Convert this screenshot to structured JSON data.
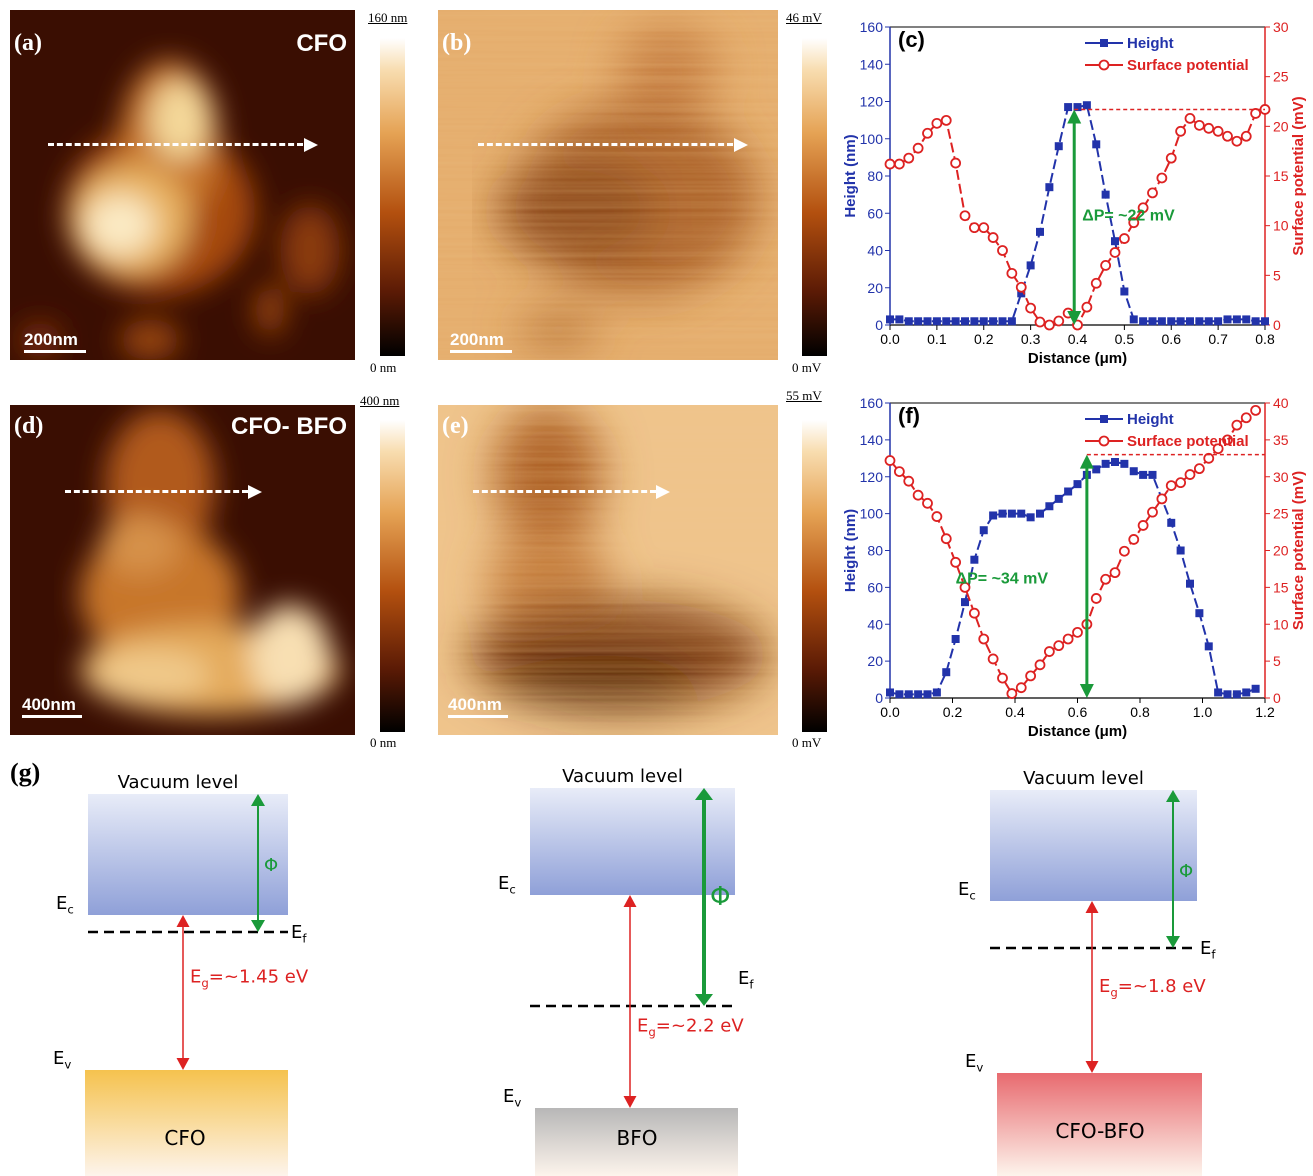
{
  "panels": {
    "a": {
      "label": "(a)",
      "tag": "CFO",
      "scale": "200nm",
      "cb_top": "160 nm",
      "cb_bottom": "0 nm"
    },
    "b": {
      "label": "(b)",
      "scale": "200nm",
      "cb_top": "46 mV",
      "cb_bottom": "0 mV"
    },
    "d": {
      "label": "(d)",
      "tag": "CFO- BFO",
      "scale": "400nm",
      "cb_top": "400 nm",
      "cb_bottom": "0 nm"
    },
    "e": {
      "label": "(e)",
      "scale": "400nm",
      "cb_top": "55 mV",
      "cb_bottom": "0 mV"
    }
  },
  "chart_data": [
    {
      "panel": "(c)",
      "type": "line",
      "xlabel": "Distance (μm)",
      "ylabel": "Height (nm)",
      "y2label": "Surface potential (mV)",
      "xlim": [
        0,
        0.8
      ],
      "ylim": [
        0,
        160
      ],
      "y2lim": [
        0,
        30
      ],
      "xticks": [
        "0.0",
        "0.1",
        "0.2",
        "0.3",
        "0.4",
        "0.5",
        "0.6",
        "0.7",
        "0.8"
      ],
      "yticks": [
        "0",
        "20",
        "40",
        "60",
        "80",
        "100",
        "120",
        "140",
        "160"
      ],
      "y2ticks": [
        "0",
        "5",
        "10",
        "15",
        "20",
        "25",
        "30"
      ],
      "annotation": "ΔP= ~22 mV",
      "series": [
        {
          "name": "Height",
          "axis": "left",
          "color": "#2233aa",
          "x": [
            0,
            0.02,
            0.04,
            0.06,
            0.08,
            0.1,
            0.12,
            0.14,
            0.16,
            0.18,
            0.2,
            0.22,
            0.24,
            0.26,
            0.28,
            0.3,
            0.32,
            0.34,
            0.36,
            0.38,
            0.4,
            0.42,
            0.44,
            0.46,
            0.48,
            0.5,
            0.52,
            0.54,
            0.56,
            0.58,
            0.6,
            0.62,
            0.64,
            0.66,
            0.68,
            0.7,
            0.72,
            0.74,
            0.76,
            0.78,
            0.8
          ],
          "y": [
            3,
            3,
            2,
            2,
            2,
            2,
            2,
            2,
            2,
            2,
            2,
            2,
            2,
            2,
            17,
            32,
            50,
            74,
            96,
            117,
            117,
            118,
            97,
            70,
            45,
            18,
            3,
            2,
            2,
            2,
            2,
            2,
            2,
            2,
            2,
            2,
            3,
            3,
            3,
            2,
            2
          ]
        },
        {
          "name": "Surface potential",
          "axis": "right",
          "color": "#dd2222",
          "x": [
            0,
            0.02,
            0.04,
            0.06,
            0.08,
            0.1,
            0.12,
            0.14,
            0.16,
            0.18,
            0.2,
            0.22,
            0.24,
            0.26,
            0.28,
            0.3,
            0.32,
            0.34,
            0.36,
            0.38,
            0.4,
            0.42,
            0.44,
            0.46,
            0.48,
            0.5,
            0.52,
            0.54,
            0.56,
            0.58,
            0.6,
            0.62,
            0.64,
            0.66,
            0.68,
            0.7,
            0.72,
            0.74,
            0.76,
            0.78,
            0.8
          ],
          "y": [
            16.2,
            16.2,
            16.8,
            17.8,
            19.3,
            20.3,
            20.6,
            16.3,
            11,
            9.8,
            9.8,
            8.8,
            7.5,
            5.2,
            3.8,
            1.7,
            0.3,
            0,
            0.4,
            1.2,
            0,
            1.8,
            4.2,
            6,
            7.3,
            8.7,
            10.3,
            11.8,
            13.3,
            14.8,
            16.8,
            19.5,
            20.8,
            20.1,
            19.8,
            19.5,
            19,
            18.5,
            19,
            21.3,
            21.7
          ]
        }
      ]
    },
    {
      "panel": "(f)",
      "type": "line",
      "xlabel": "Distance (μm)",
      "ylabel": "Height (nm)",
      "y2label": "Surface potential (mV)",
      "xlim": [
        0,
        1.2
      ],
      "ylim": [
        0,
        160
      ],
      "y2lim": [
        0,
        40
      ],
      "xticks": [
        "0.0",
        "0.2",
        "0.4",
        "0.6",
        "0.8",
        "1.0",
        "1.2"
      ],
      "yticks": [
        "0",
        "20",
        "40",
        "60",
        "80",
        "100",
        "120",
        "140",
        "160"
      ],
      "y2ticks": [
        "0",
        "5",
        "10",
        "15",
        "20",
        "25",
        "30",
        "35",
        "40"
      ],
      "annotation": "ΔP= ~34 mV",
      "series": [
        {
          "name": "Height",
          "axis": "left",
          "color": "#2233aa",
          "x": [
            0,
            0.03,
            0.06,
            0.09,
            0.12,
            0.15,
            0.18,
            0.21,
            0.24,
            0.27,
            0.3,
            0.33,
            0.36,
            0.39,
            0.42,
            0.45,
            0.48,
            0.51,
            0.54,
            0.57,
            0.6,
            0.63,
            0.66,
            0.69,
            0.72,
            0.75,
            0.78,
            0.81,
            0.84,
            0.87,
            0.9,
            0.93,
            0.96,
            0.99,
            1.02,
            1.05,
            1.08,
            1.11,
            1.14,
            1.17
          ],
          "y": [
            3,
            2,
            2,
            2,
            2,
            3,
            14,
            32,
            52,
            75,
            91,
            99,
            100,
            100,
            100,
            98,
            100,
            104,
            108,
            112,
            116,
            121,
            124,
            127,
            128,
            127,
            123,
            121,
            121,
            108,
            95,
            80,
            62,
            46,
            28,
            3,
            2,
            2,
            3,
            5
          ]
        },
        {
          "name": "Surface potential",
          "axis": "right",
          "color": "#dd2222",
          "x": [
            0,
            0.03,
            0.06,
            0.09,
            0.12,
            0.15,
            0.18,
            0.21,
            0.24,
            0.27,
            0.3,
            0.33,
            0.36,
            0.39,
            0.42,
            0.45,
            0.48,
            0.51,
            0.54,
            0.57,
            0.6,
            0.63,
            0.66,
            0.69,
            0.72,
            0.75,
            0.78,
            0.81,
            0.84,
            0.87,
            0.9,
            0.93,
            0.96,
            0.99,
            1.02,
            1.05,
            1.08,
            1.11,
            1.14,
            1.17
          ],
          "y": [
            32.2,
            30.7,
            29.4,
            27.5,
            26.4,
            24.6,
            21.6,
            18.4,
            15,
            11.5,
            8,
            5.3,
            2.7,
            0.6,
            1.4,
            3,
            4.5,
            6.3,
            7.1,
            8,
            8.9,
            10,
            13.5,
            16.1,
            17,
            19.9,
            21.5,
            23.4,
            25.2,
            27,
            28.8,
            29.2,
            30.3,
            31.1,
            32.5,
            33.8,
            35,
            37,
            38,
            39
          ]
        }
      ]
    }
  ],
  "band_diagrams": [
    {
      "name": "CFO",
      "vacuum": "Vacuum level",
      "ec": "E",
      "ec_sub": "c",
      "ef": "E",
      "ef_sub": "f",
      "ev": "E",
      "ev_sub": "v",
      "phi": "Φ",
      "eg_pre": "E",
      "eg_sub": "g",
      "eg_val": "=~1.45 eV",
      "label": "CFO",
      "color": "#f5c24e"
    },
    {
      "name": "BFO",
      "vacuum": "Vacuum level",
      "ec": "E",
      "ec_sub": "c",
      "ef": "E",
      "ef_sub": "f",
      "ev": "E",
      "ev_sub": "v",
      "phi": "Φ",
      "eg_pre": "E",
      "eg_sub": "g",
      "eg_val": "=~2.2 eV",
      "label": "BFO",
      "color": "#b7b7b7"
    },
    {
      "name": "CFO-BFO",
      "vacuum": "Vacuum level",
      "ec": "E",
      "ec_sub": "c",
      "ef": "E",
      "ef_sub": "f",
      "ev": "E",
      "ev_sub": "v",
      "phi": "Φ",
      "eg_pre": "E",
      "eg_sub": "g",
      "eg_val": "=~1.8 eV",
      "label": "CFO-BFO",
      "color": "#e86a6f"
    }
  ],
  "g_label": "(g)",
  "colors": {
    "height": "#2233aa",
    "potential": "#dd2222",
    "delta": "#1a9a3a",
    "band_top": "#8fa0d8"
  }
}
